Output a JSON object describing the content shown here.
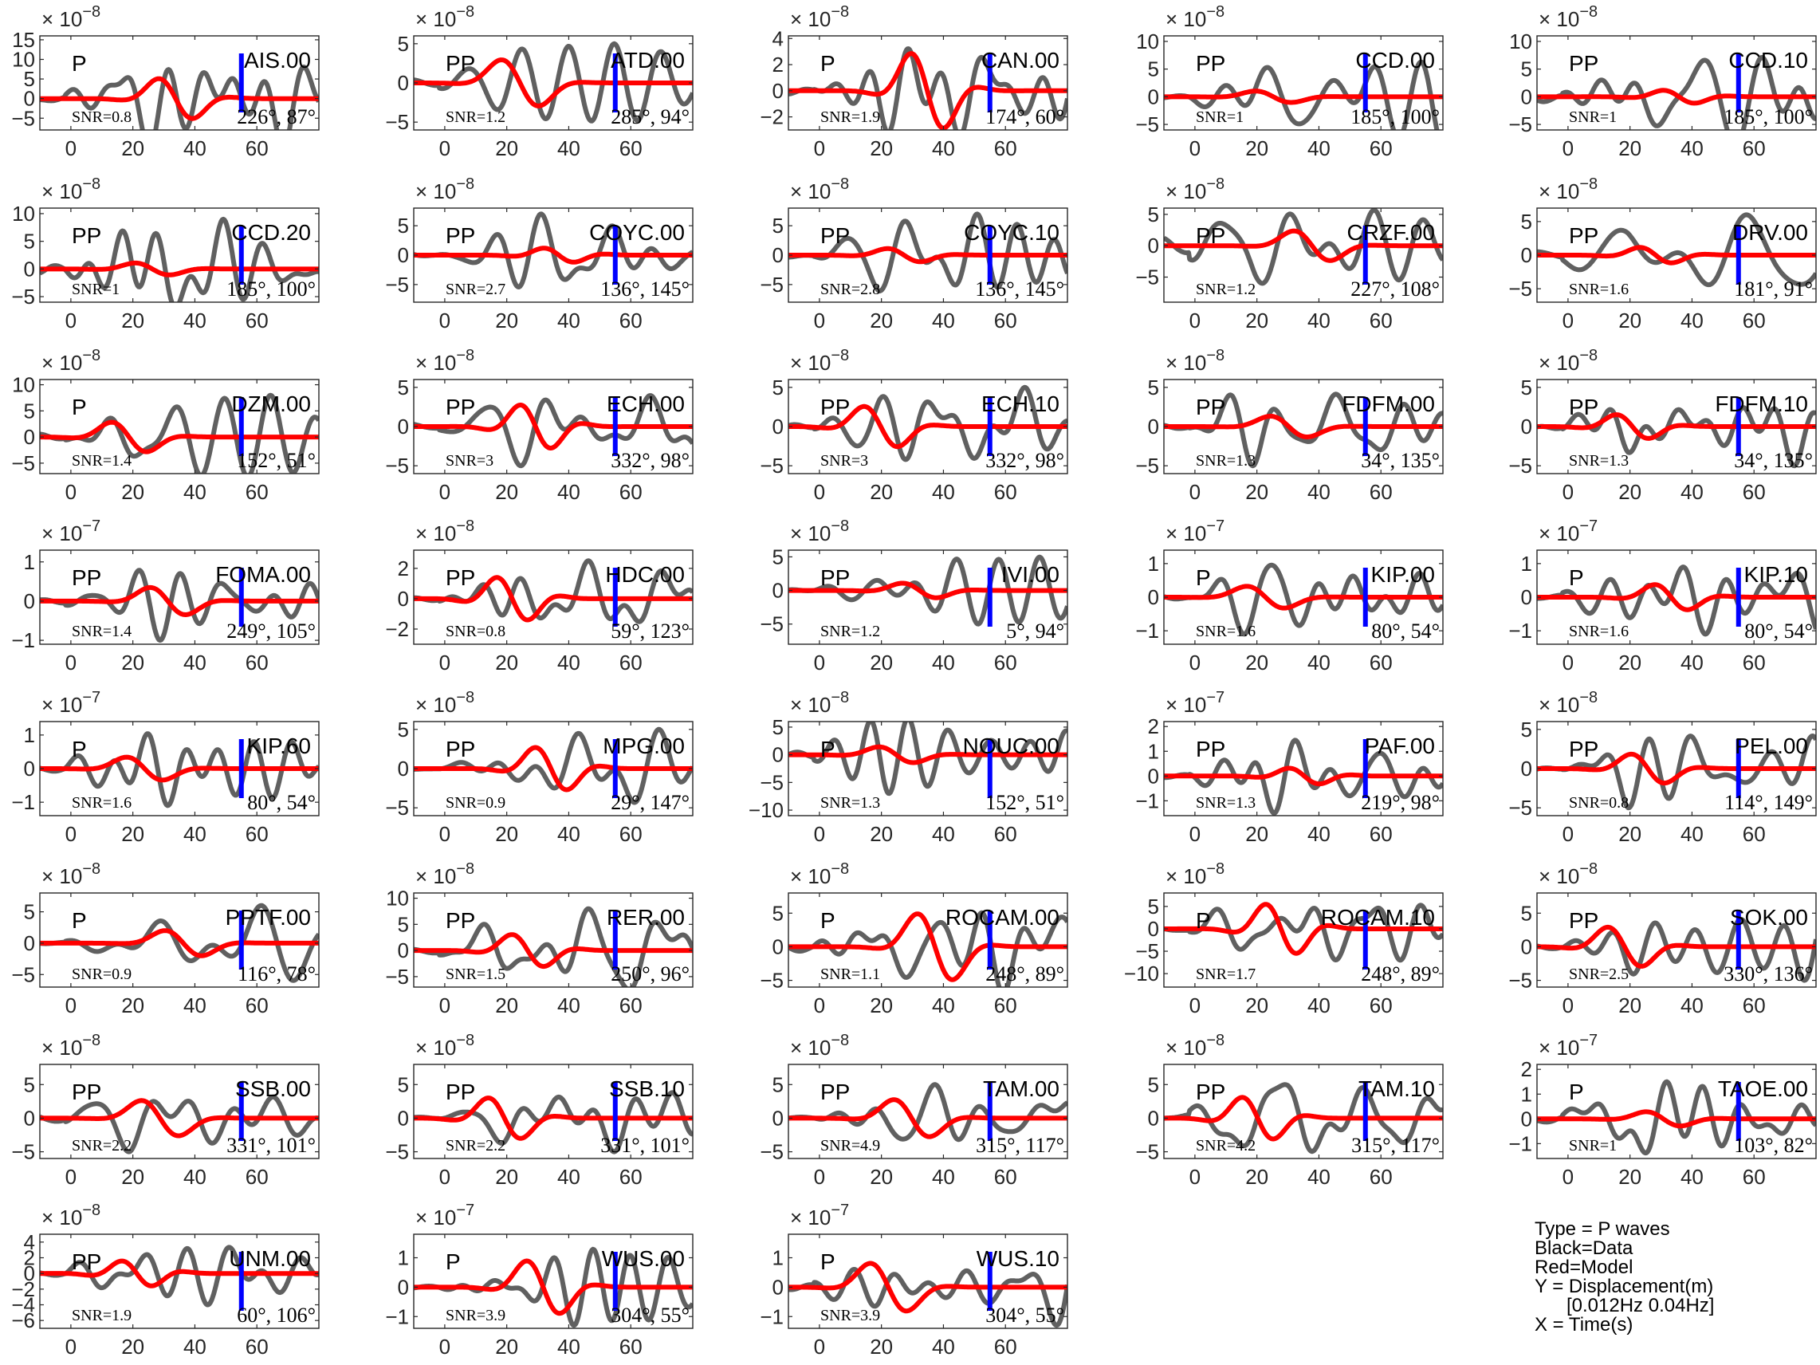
{
  "chart_data": {
    "type": "line",
    "xlim": [
      -10,
      80
    ],
    "xticks": [
      0,
      20,
      40,
      60
    ],
    "colors": {
      "data": "#606060",
      "model": "#ff0000",
      "marker": "#0000ff"
    },
    "legend": {
      "lines": [
        "Type = P waves",
        "Black=Data",
        "Red=Model",
        "Y = Displacement(m)",
        "[0.012Hz 0.04Hz]",
        "X = Time(s)"
      ]
    },
    "panels": [
      {
        "station": "AIS.00",
        "phase": "P",
        "snr": "SNR=0.8",
        "azimuth": "226°, 87°",
        "exponent": "-8",
        "ylim": [
          -8,
          16
        ],
        "yticks": [
          -5,
          0,
          5,
          10,
          15
        ],
        "amp_data": 13,
        "amp_model": 7,
        "seed": 1
      },
      {
        "station": "ATD.00",
        "phase": "PP",
        "snr": "SNR=1.2",
        "azimuth": "285°, 94°",
        "exponent": "-8",
        "ylim": [
          -6,
          6
        ],
        "yticks": [
          -5,
          0,
          5
        ],
        "amp_data": 5,
        "amp_model": 4.5,
        "seed": 2
      },
      {
        "station": "CAN.00",
        "phase": "P",
        "snr": "SNR=1.9",
        "azimuth": "174°, 60°",
        "exponent": "-8",
        "ylim": [
          -3,
          4.2
        ],
        "yticks": [
          -2,
          0,
          2,
          4
        ],
        "amp_data": 3.5,
        "amp_model": 3.8,
        "seed": 3
      },
      {
        "station": "CCD.00",
        "phase": "PP",
        "snr": "SNR=1",
        "azimuth": "185°, 100°",
        "exponent": "-8",
        "ylim": [
          -6,
          11
        ],
        "yticks": [
          -5,
          0,
          5,
          10
        ],
        "amp_data": 9,
        "amp_model": 1.5,
        "seed": 4
      },
      {
        "station": "CCD.10",
        "phase": "PP",
        "snr": "SNR=1",
        "azimuth": "185°, 100°",
        "exponent": "-8",
        "ylim": [
          -6,
          11
        ],
        "yticks": [
          -5,
          0,
          5,
          10
        ],
        "amp_data": 9,
        "amp_model": 1.5,
        "seed": 5
      },
      {
        "station": "CCD.20",
        "phase": "PP",
        "snr": "SNR=1",
        "azimuth": "185°, 100°",
        "exponent": "-8",
        "ylim": [
          -6,
          11
        ],
        "yticks": [
          -5,
          0,
          5,
          10
        ],
        "amp_data": 9,
        "amp_model": 1.5,
        "seed": 6
      },
      {
        "station": "COYC.00",
        "phase": "PP",
        "snr": "SNR=2.7",
        "azimuth": "136°, 145°",
        "exponent": "-8",
        "ylim": [
          -8,
          8
        ],
        "yticks": [
          -5,
          0,
          5
        ],
        "amp_data": 7,
        "amp_model": 1.5,
        "seed": 7
      },
      {
        "station": "COYC.10",
        "phase": "PP",
        "snr": "SNR=2.8",
        "azimuth": "136°, 145°",
        "exponent": "-8",
        "ylim": [
          -8,
          8
        ],
        "yticks": [
          -5,
          0,
          5
        ],
        "amp_data": 7,
        "amp_model": 1.5,
        "seed": 8
      },
      {
        "station": "CRZF.00",
        "phase": "PP",
        "snr": "SNR=1.2",
        "azimuth": "227°, 108°",
        "exponent": "-8",
        "ylim": [
          -9,
          6
        ],
        "yticks": [
          -5,
          0,
          5
        ],
        "amp_data": 6,
        "amp_model": 3.5,
        "seed": 9
      },
      {
        "station": "DRV.00",
        "phase": "PP",
        "snr": "SNR=1.6",
        "azimuth": "181°, 91°",
        "exponent": "-8",
        "ylim": [
          -7,
          7
        ],
        "yticks": [
          -5,
          0,
          5
        ],
        "amp_data": 6,
        "amp_model": 1.5,
        "seed": 10
      },
      {
        "station": "DZM.00",
        "phase": "P",
        "snr": "SNR=1.4",
        "azimuth": "152°, 51°",
        "exponent": "-8",
        "ylim": [
          -7,
          11
        ],
        "yticks": [
          -5,
          0,
          5,
          10
        ],
        "amp_data": 8,
        "amp_model": 4,
        "seed": 11
      },
      {
        "station": "ECH.00",
        "phase": "PP",
        "snr": "SNR=3",
        "azimuth": "332°, 98°",
        "exponent": "-8",
        "ylim": [
          -6,
          6
        ],
        "yticks": [
          -5,
          0,
          5
        ],
        "amp_data": 5,
        "amp_model": 3.5,
        "seed": 12
      },
      {
        "station": "ECH.10",
        "phase": "PP",
        "snr": "SNR=3",
        "azimuth": "332°, 98°",
        "exponent": "-8",
        "ylim": [
          -6,
          6
        ],
        "yticks": [
          -5,
          0,
          5
        ],
        "amp_data": 5,
        "amp_model": 3.5,
        "seed": 13
      },
      {
        "station": "FDFM.00",
        "phase": "PP",
        "snr": "SNR=1.3",
        "azimuth": "34°, 135°",
        "exponent": "-8",
        "ylim": [
          -6,
          6
        ],
        "yticks": [
          -5,
          0,
          5
        ],
        "amp_data": 5,
        "amp_model": 2,
        "seed": 14
      },
      {
        "station": "FDFM.10",
        "phase": "PP",
        "snr": "SNR=1.3",
        "azimuth": "34°, 135°",
        "exponent": "-8",
        "ylim": [
          -6,
          6
        ],
        "yticks": [
          -5,
          0,
          5
        ],
        "amp_data": 5,
        "amp_model": 2,
        "seed": 15
      },
      {
        "station": "FOMA.00",
        "phase": "PP",
        "snr": "SNR=1.4",
        "azimuth": "249°, 105°",
        "exponent": "-7",
        "ylim": [
          -1.1,
          1.3
        ],
        "yticks": [
          -1,
          0,
          1
        ],
        "amp_data": 1,
        "amp_model": 0.5,
        "seed": 16
      },
      {
        "station": "HDC.00",
        "phase": "PP",
        "snr": "SNR=0.8",
        "azimuth": "59°, 123°",
        "exponent": "-8",
        "ylim": [
          -3,
          3.2
        ],
        "yticks": [
          -2,
          0,
          2
        ],
        "amp_data": 2.5,
        "amp_model": 1.8,
        "seed": 17
      },
      {
        "station": "IVI.00",
        "phase": "PP",
        "snr": "SNR=1.2",
        "azimuth": "5°, 94°",
        "exponent": "-8",
        "ylim": [
          -8,
          6
        ],
        "yticks": [
          -5,
          0,
          5
        ],
        "amp_data": 5,
        "amp_model": 1.5,
        "seed": 18
      },
      {
        "station": "KIP.00",
        "phase": "P",
        "snr": "SNR=1.6",
        "azimuth": "80°, 54°",
        "exponent": "-7",
        "ylim": [
          -1.4,
          1.4
        ],
        "yticks": [
          -1,
          0,
          1
        ],
        "amp_data": 1.1,
        "amp_model": 0.5,
        "seed": 19
      },
      {
        "station": "KIP.10",
        "phase": "P",
        "snr": "SNR=1.6",
        "azimuth": "80°, 54°",
        "exponent": "-7",
        "ylim": [
          -1.4,
          1.4
        ],
        "yticks": [
          -1,
          0,
          1
        ],
        "amp_data": 1.1,
        "amp_model": 0.5,
        "seed": 20
      },
      {
        "station": "KIP.60",
        "phase": "P",
        "snr": "SNR=1.6",
        "azimuth": "80°, 54°",
        "exponent": "-7",
        "ylim": [
          -1.4,
          1.4
        ],
        "yticks": [
          -1,
          0,
          1
        ],
        "amp_data": 1.1,
        "amp_model": 0.5,
        "seed": 21
      },
      {
        "station": "MPG.00",
        "phase": "PP",
        "snr": "SNR=0.9",
        "azimuth": "29°, 147°",
        "exponent": "-8",
        "ylim": [
          -6,
          6
        ],
        "yticks": [
          -5,
          0,
          5
        ],
        "amp_data": 5,
        "amp_model": 3.5,
        "seed": 22
      },
      {
        "station": "NOUC.00",
        "phase": "P",
        "snr": "SNR=1.3",
        "azimuth": "152°, 51°",
        "exponent": "-8",
        "ylim": [
          -11,
          6
        ],
        "yticks": [
          -10,
          -5,
          0,
          5
        ],
        "amp_data": 7,
        "amp_model": 2,
        "seed": 23
      },
      {
        "station": "PAF.00",
        "phase": "PP",
        "snr": "SNR=1.3",
        "azimuth": "219°, 98°",
        "exponent": "-7",
        "ylim": [
          -1.6,
          2.2
        ],
        "yticks": [
          -1,
          0,
          1,
          2
        ],
        "amp_data": 1.5,
        "amp_model": 0.4,
        "seed": 24
      },
      {
        "station": "PEL.00",
        "phase": "PP",
        "snr": "SNR=0.8",
        "azimuth": "114°, 149°",
        "exponent": "-8",
        "ylim": [
          -6,
          6
        ],
        "yticks": [
          -5,
          0,
          5
        ],
        "amp_data": 5,
        "amp_model": 2.5,
        "seed": 25
      },
      {
        "station": "PPTF.00",
        "phase": "P",
        "snr": "SNR=0.9",
        "azimuth": "116°, 78°",
        "exponent": "-8",
        "ylim": [
          -7,
          8
        ],
        "yticks": [
          -5,
          0,
          5
        ],
        "amp_data": 6,
        "amp_model": 3,
        "seed": 26
      },
      {
        "station": "RER.00",
        "phase": "PP",
        "snr": "SNR=1.5",
        "azimuth": "250°, 96°",
        "exponent": "-8",
        "ylim": [
          -7,
          11
        ],
        "yticks": [
          -5,
          0,
          5,
          10
        ],
        "amp_data": 8,
        "amp_model": 4,
        "seed": 27
      },
      {
        "station": "ROCAM.00",
        "phase": "P",
        "snr": "SNR=1.1",
        "azimuth": "248°, 89°",
        "exponent": "-8",
        "ylim": [
          -6,
          8
        ],
        "yticks": [
          -5,
          0,
          5
        ],
        "amp_data": 7,
        "amp_model": 7,
        "seed": 28
      },
      {
        "station": "ROCAM.10",
        "phase": "P",
        "snr": "SNR=1.7",
        "azimuth": "248°, 89°",
        "exponent": "-8",
        "ylim": [
          -13,
          8
        ],
        "yticks": [
          -10,
          -5,
          0,
          5
        ],
        "amp_data": 7,
        "amp_model": 7,
        "seed": 29
      },
      {
        "station": "SOK.00",
        "phase": "PP",
        "snr": "SNR=2.5",
        "azimuth": "330°, 136°",
        "exponent": "-8",
        "ylim": [
          -6,
          8
        ],
        "yticks": [
          -5,
          0,
          5
        ],
        "amp_data": 5,
        "amp_model": 4,
        "seed": 30
      },
      {
        "station": "SSB.00",
        "phase": "PP",
        "snr": "SNR=2.2",
        "azimuth": "331°, 101°",
        "exponent": "-8",
        "ylim": [
          -6,
          8
        ],
        "yticks": [
          -5,
          0,
          5
        ],
        "amp_data": 5,
        "amp_model": 4,
        "seed": 31
      },
      {
        "station": "SSB.10",
        "phase": "PP",
        "snr": "SNR=2.2",
        "azimuth": "331°, 101°",
        "exponent": "-8",
        "ylim": [
          -6,
          8
        ],
        "yticks": [
          -5,
          0,
          5
        ],
        "amp_data": 5,
        "amp_model": 4,
        "seed": 32
      },
      {
        "station": "TAM.00",
        "phase": "PP",
        "snr": "SNR=4.9",
        "azimuth": "315°, 117°",
        "exponent": "-8",
        "ylim": [
          -6,
          8
        ],
        "yticks": [
          -5,
          0,
          5
        ],
        "amp_data": 5,
        "amp_model": 4,
        "seed": 33
      },
      {
        "station": "TAM.10",
        "phase": "PP",
        "snr": "SNR=4.2",
        "azimuth": "315°, 117°",
        "exponent": "-8",
        "ylim": [
          -6,
          8
        ],
        "yticks": [
          -5,
          0,
          5
        ],
        "amp_data": 5,
        "amp_model": 4,
        "seed": 34
      },
      {
        "station": "TAOE.00",
        "phase": "P",
        "snr": "SNR=1",
        "azimuth": "103°, 82°",
        "exponent": "-7",
        "ylim": [
          -1.6,
          2.2
        ],
        "yticks": [
          -1,
          0,
          1,
          2
        ],
        "amp_data": 1.5,
        "amp_model": 0.4,
        "seed": 35
      },
      {
        "station": "UNM.00",
        "phase": "PP",
        "snr": "SNR=1.9",
        "azimuth": "60°, 106°",
        "exponent": "-8",
        "ylim": [
          -7,
          5
        ],
        "yticks": [
          -6,
          -4,
          -2,
          0,
          2,
          4
        ],
        "amp_data": 4,
        "amp_model": 2,
        "seed": 36
      },
      {
        "station": "WUS.00",
        "phase": "P",
        "snr": "SNR=3.9",
        "azimuth": "304°, 55°",
        "exponent": "-7",
        "ylim": [
          -1.4,
          1.8
        ],
        "yticks": [
          -1,
          0,
          1
        ],
        "amp_data": 1.3,
        "amp_model": 1.2,
        "seed": 37
      },
      {
        "station": "WUS.10",
        "phase": "P",
        "snr": "SNR=3.9",
        "azimuth": "304°, 55°",
        "exponent": "-7",
        "ylim": [
          -1.4,
          1.8
        ],
        "yticks": [
          -1,
          0,
          1
        ],
        "amp_data": 1.3,
        "amp_model": 1.2,
        "seed": 38
      }
    ]
  }
}
